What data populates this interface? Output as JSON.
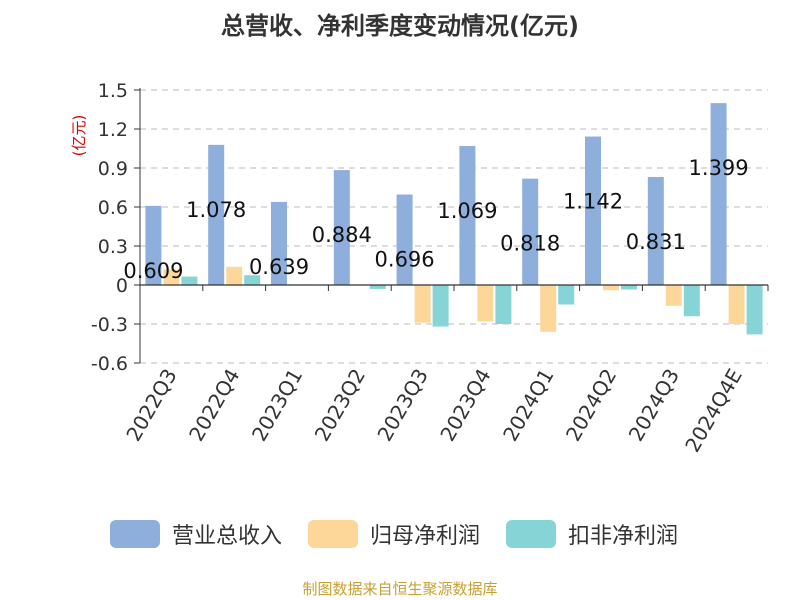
{
  "title": "总营收、净利季度变动情况(亿元)",
  "source": "制图数据来自恒生聚源数据库",
  "chart_data": {
    "type": "bar",
    "title": "总营收、净利季度变动情况(亿元)",
    "ylabel": "(亿元)",
    "ylim": [
      -0.6,
      1.5
    ],
    "yticks": [
      1.5,
      1.2,
      0.9,
      0.6,
      0.3,
      0,
      -0.3,
      -0.6
    ],
    "ytick_labels": [
      "1.5",
      "1.2",
      "0.9",
      "0.6",
      "0.3",
      "0",
      "-0.3",
      "-0.6"
    ],
    "grid": true,
    "legend": "bottom",
    "categories": [
      "2022Q3",
      "2022Q4",
      "2023Q1",
      "2023Q2",
      "2023Q3",
      "2023Q4",
      "2024Q1",
      "2024Q2",
      "2024Q3",
      "2024Q4E"
    ],
    "series": [
      {
        "name": "营业总收入",
        "color": "#8eaedb",
        "values": [
          0.609,
          1.078,
          0.639,
          0.884,
          0.696,
          1.069,
          0.818,
          1.142,
          0.831,
          1.399
        ],
        "labels": [
          "0.609",
          "1.078",
          "0.639",
          "0.884",
          "0.696",
          "1.069",
          "0.818",
          "1.142",
          "0.831",
          "1.399"
        ]
      },
      {
        "name": "归母净利润",
        "color": "#fdd79a",
        "values": [
          0.12,
          0.14,
          0.005,
          0.005,
          -0.29,
          -0.28,
          -0.36,
          -0.04,
          -0.16,
          -0.3
        ]
      },
      {
        "name": "扣非净利润",
        "color": "#86d4d6",
        "values": [
          0.065,
          0.075,
          0.003,
          -0.03,
          -0.32,
          -0.3,
          -0.15,
          -0.035,
          -0.24,
          -0.38
        ]
      }
    ]
  }
}
